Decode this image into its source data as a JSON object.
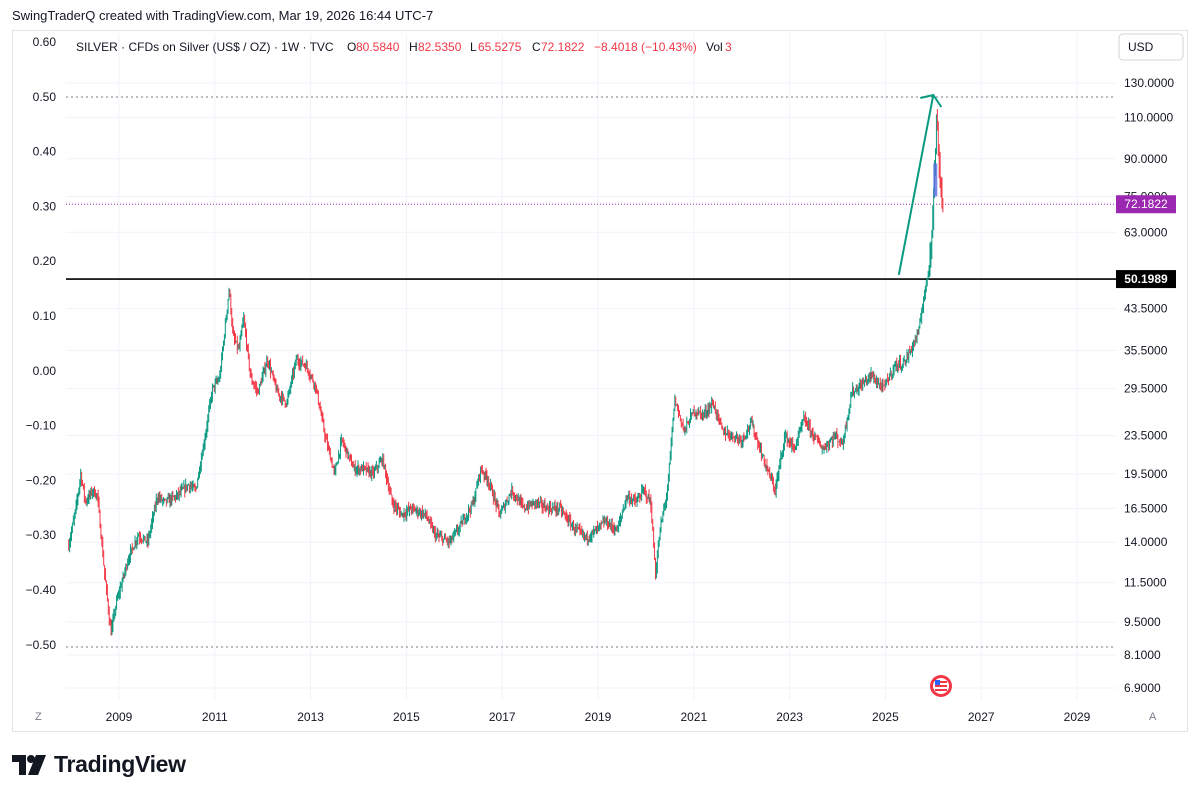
{
  "header": {
    "attribution": "SwingTraderQ created with TradingView.com, Mar 19, 2026 16:44 UTC-7"
  },
  "legend": {
    "symbol_text": "SILVER · CFDs on Silver (US$ / OZ) · 1W · TVC",
    "o_label": "O",
    "o_value": "80.5840",
    "h_label": "H",
    "h_value": "82.5350",
    "l_label": "L",
    "l_value": "65.5275",
    "c_label": "C",
    "c_value": "72.1822",
    "change": "−8.4018 (−10.43%)",
    "vol_label": "Vol",
    "vol_value": "3"
  },
  "price_axis": {
    "currency": "USD",
    "labels": [
      "130.0000",
      "110.0000",
      "90.0000",
      "75.0000",
      "63.0000",
      "43.5000",
      "35.5000",
      "29.5000",
      "23.5000",
      "19.5000",
      "16.5000",
      "14.0000",
      "11.5000",
      "9.5000",
      "8.1000",
      "6.9000"
    ],
    "current_price_tag": "72.1822",
    "level_tag": "50.1989"
  },
  "left_axis": {
    "labels": [
      "0.60",
      "0.50",
      "0.40",
      "0.30",
      "0.20",
      "0.10",
      "0.00",
      "−0.10",
      "−0.20",
      "−0.30",
      "−0.40",
      "−0.50"
    ]
  },
  "time_axis": {
    "labels": [
      "2009",
      "2011",
      "2013",
      "2015",
      "2017",
      "2019",
      "2021",
      "2023",
      "2025",
      "2027",
      "2029"
    ],
    "left_button": "Z",
    "right_button": "A"
  },
  "colors": {
    "up": "#089981",
    "down": "#f23645",
    "price_tag": "#9c27b0",
    "level_line": "#000000",
    "arrow": "#089981"
  },
  "footer": {
    "brand": "TradingView"
  },
  "chart_data": {
    "type": "line",
    "x_unit": "year",
    "y_unit": "USD/oz",
    "log_scale": true,
    "ylim": [
      6.5,
      145
    ],
    "xlim": [
      2007.9,
      2029.5
    ],
    "series": [
      {
        "values_xy": [
          [
            2007.95,
            13.8
          ],
          [
            2008.1,
            16.5
          ],
          [
            2008.2,
            19.5
          ],
          [
            2008.3,
            17.0
          ],
          [
            2008.45,
            18.0
          ],
          [
            2008.55,
            17.5
          ],
          [
            2008.7,
            12.0
          ],
          [
            2008.83,
            9.0
          ],
          [
            2008.95,
            10.5
          ],
          [
            2009.2,
            13.0
          ],
          [
            2009.4,
            14.5
          ],
          [
            2009.6,
            14.0
          ],
          [
            2009.8,
            17.5
          ],
          [
            2009.95,
            17.0
          ],
          [
            2010.2,
            17.5
          ],
          [
            2010.45,
            18.5
          ],
          [
            2010.6,
            18.0
          ],
          [
            2010.8,
            23.5
          ],
          [
            2010.95,
            29.5
          ],
          [
            2011.1,
            31.0
          ],
          [
            2011.3,
            48.0
          ],
          [
            2011.38,
            38.0
          ],
          [
            2011.5,
            35.5
          ],
          [
            2011.6,
            41.5
          ],
          [
            2011.75,
            31.0
          ],
          [
            2011.9,
            29.0
          ],
          [
            2012.1,
            34.0
          ],
          [
            2012.3,
            29.0
          ],
          [
            2012.5,
            27.5
          ],
          [
            2012.7,
            34.0
          ],
          [
            2012.9,
            33.0
          ],
          [
            2013.1,
            30.0
          ],
          [
            2013.3,
            23.5
          ],
          [
            2013.5,
            19.5
          ],
          [
            2013.65,
            23.0
          ],
          [
            2013.9,
            20.0
          ],
          [
            2014.1,
            20.0
          ],
          [
            2014.3,
            19.5
          ],
          [
            2014.5,
            21.0
          ],
          [
            2014.7,
            17.0
          ],
          [
            2014.9,
            16.0
          ],
          [
            2015.1,
            16.5
          ],
          [
            2015.4,
            16.0
          ],
          [
            2015.6,
            14.5
          ],
          [
            2015.9,
            14.0
          ],
          [
            2016.1,
            15.0
          ],
          [
            2016.4,
            17.0
          ],
          [
            2016.55,
            20.0
          ],
          [
            2016.7,
            19.0
          ],
          [
            2016.95,
            16.0
          ],
          [
            2017.2,
            18.0
          ],
          [
            2017.45,
            16.5
          ],
          [
            2017.7,
            17.0
          ],
          [
            2017.95,
            16.5
          ],
          [
            2018.2,
            16.5
          ],
          [
            2018.5,
            15.0
          ],
          [
            2018.75,
            14.3
          ],
          [
            2018.95,
            14.8
          ],
          [
            2019.15,
            15.5
          ],
          [
            2019.4,
            14.8
          ],
          [
            2019.6,
            17.5
          ],
          [
            2019.8,
            17.0
          ],
          [
            2019.95,
            18.0
          ],
          [
            2020.1,
            17.0
          ],
          [
            2020.2,
            12.0
          ],
          [
            2020.3,
            15.0
          ],
          [
            2020.45,
            18.0
          ],
          [
            2020.6,
            28.0
          ],
          [
            2020.8,
            24.0
          ],
          [
            2021.0,
            26.5
          ],
          [
            2021.2,
            26.0
          ],
          [
            2021.4,
            27.5
          ],
          [
            2021.6,
            24.0
          ],
          [
            2021.8,
            23.5
          ],
          [
            2022.0,
            23.0
          ],
          [
            2022.2,
            25.0
          ],
          [
            2022.45,
            21.0
          ],
          [
            2022.7,
            18.0
          ],
          [
            2022.9,
            23.5
          ],
          [
            2023.1,
            22.0
          ],
          [
            2023.3,
            25.5
          ],
          [
            2023.5,
            23.5
          ],
          [
            2023.7,
            22.0
          ],
          [
            2023.95,
            23.5
          ],
          [
            2024.1,
            22.5
          ],
          [
            2024.3,
            29.0
          ],
          [
            2024.5,
            30.0
          ],
          [
            2024.7,
            31.5
          ],
          [
            2024.95,
            29.5
          ],
          [
            2025.2,
            33.0
          ],
          [
            2025.4,
            33.5
          ],
          [
            2025.55,
            36.0
          ],
          [
            2025.7,
            39.0
          ],
          [
            2025.8,
            46.0
          ],
          [
            2025.9,
            52.0
          ],
          [
            2026.0,
            72.0
          ],
          [
            2026.07,
            110.0
          ],
          [
            2026.13,
            85.0
          ],
          [
            2026.2,
            72.18
          ]
        ]
      }
    ],
    "horizontal_levels": [
      130.0,
      50.1989,
      72.1822,
      8.1
    ]
  }
}
